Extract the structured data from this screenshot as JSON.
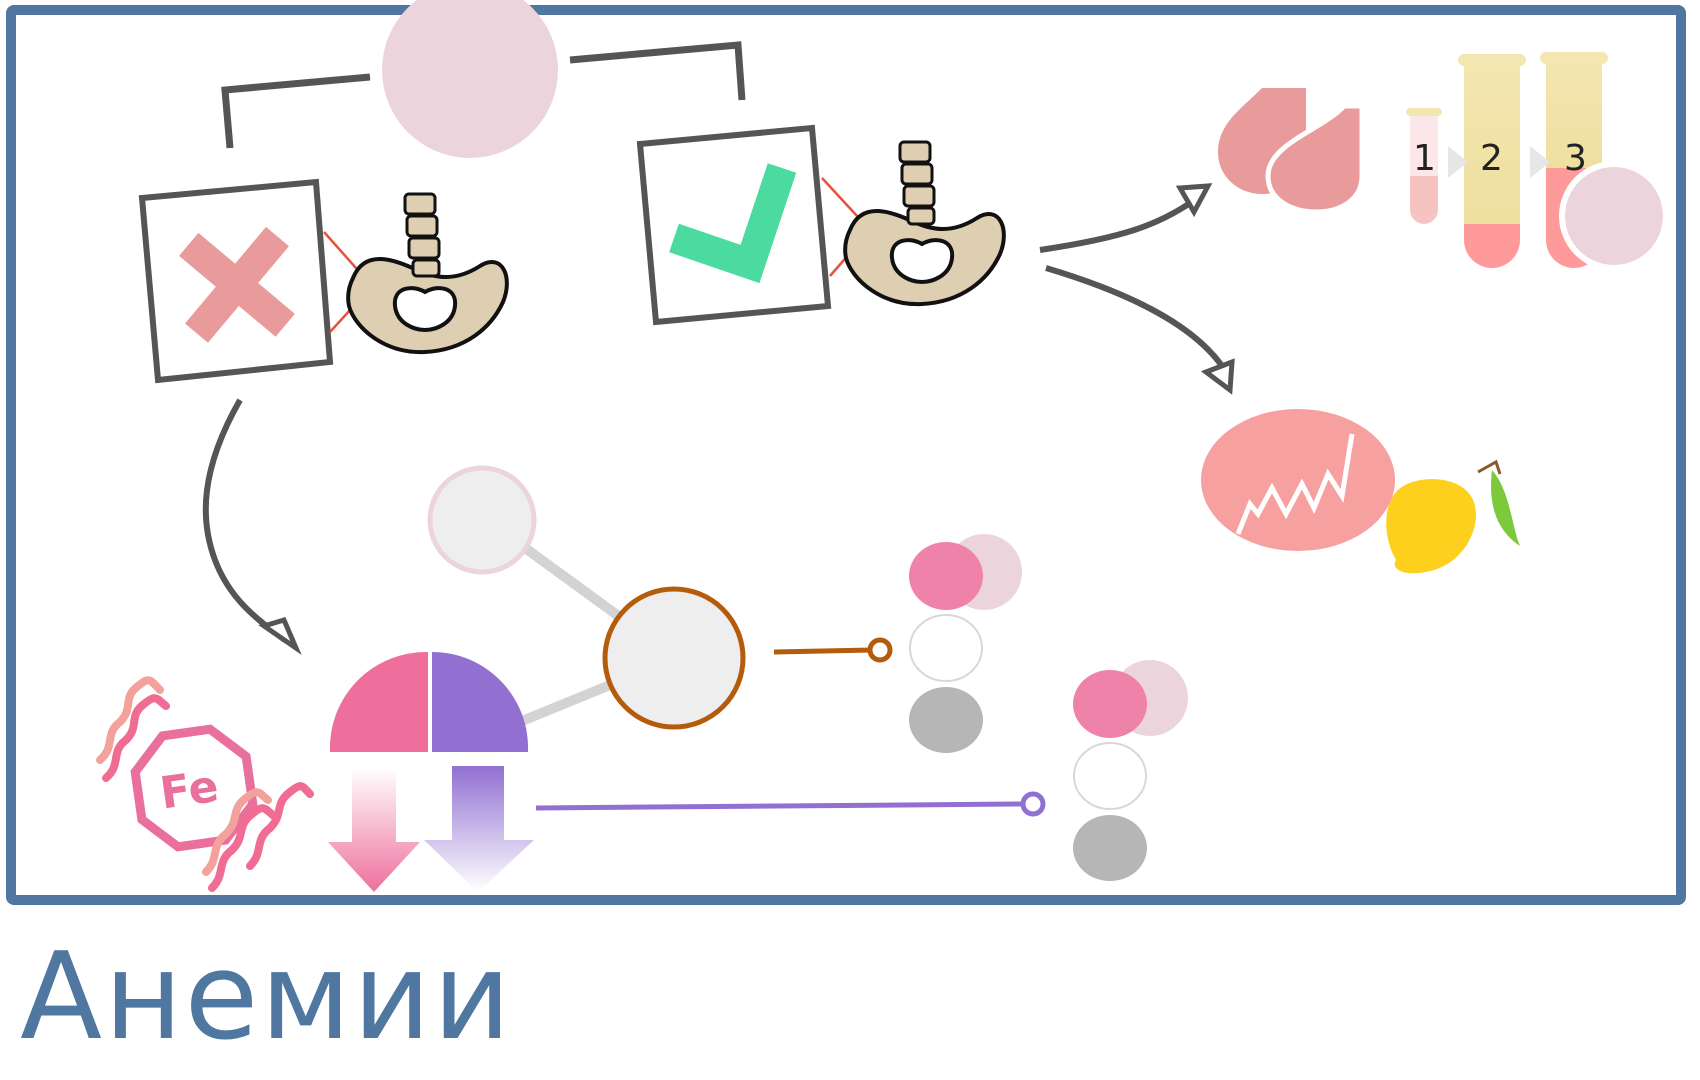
{
  "title": "Анемии",
  "tube_labels": [
    "1",
    "2",
    "3"
  ],
  "iron_label": "Fe",
  "icons": {
    "cross": "cross-mark-icon",
    "check": "check-mark-icon",
    "pelvis": "pelvis-spine-icon",
    "blood": "blood-drops-icon",
    "tubes": "test-tubes-icon",
    "cell": "red-cell-icon",
    "lemon": "lemon-icon",
    "iron": "iron-octagon-icon",
    "waves": "heat-waves-icon"
  },
  "colors": {
    "frame": "#4f779f",
    "title": "#4f779f",
    "cross": "#e99a9a",
    "check": "#4cdb9e",
    "pink": "#ee6f9c",
    "purple": "#9170d2",
    "brown": "#b55b0c",
    "blood": "#e99a9a",
    "cell": "#f7a0a0",
    "lemon": "#fcd01c"
  }
}
